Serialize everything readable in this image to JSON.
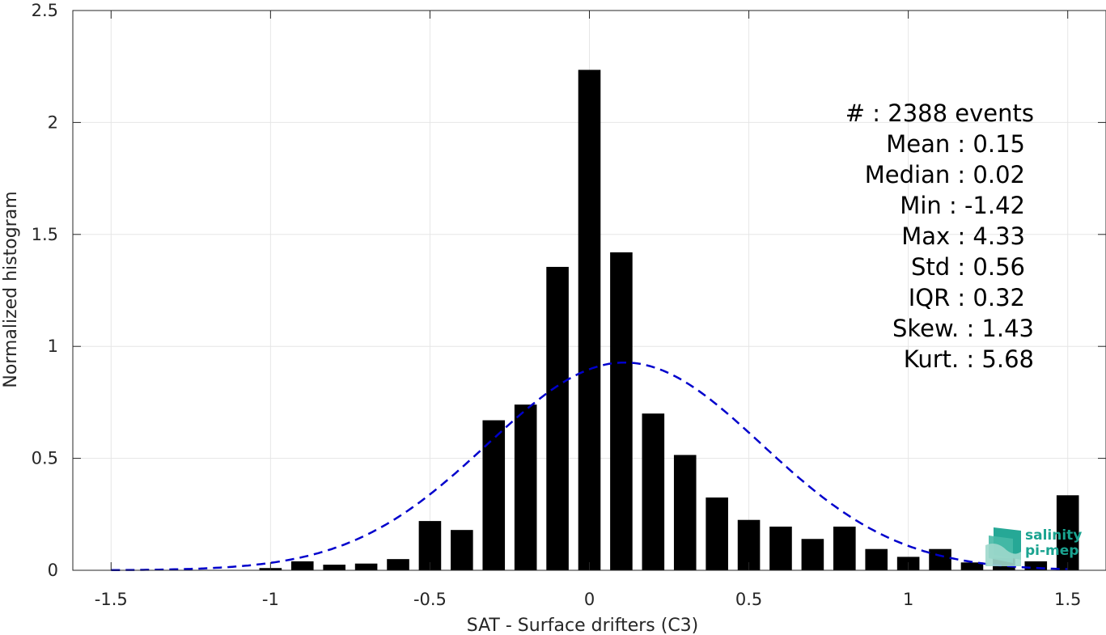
{
  "chart_data": {
    "type": "bar",
    "xlabel": "SAT - Surface drifters (C3)",
    "ylabel": "Normalized histogram",
    "xlim": [
      -1.62,
      1.62
    ],
    "ylim": [
      0,
      2.5
    ],
    "xticks": [
      -1.5,
      -1,
      -0.5,
      0,
      0.5,
      1,
      1.5
    ],
    "xtick_labels": [
      "-1.5",
      "-1",
      "-0.5",
      "0",
      "0.5",
      "1",
      "1.5"
    ],
    "yticks": [
      0,
      0.5,
      1,
      1.5,
      2,
      2.5
    ],
    "ytick_labels": [
      "0",
      "0.5",
      "1",
      "1.5",
      "2",
      "2.5"
    ],
    "grid": true,
    "bar_width": 0.07,
    "bar_color": "#000000",
    "bins": [
      -1.5,
      -1.4,
      -1.3,
      -1.2,
      -1.1,
      -1.0,
      -0.9,
      -0.8,
      -0.7,
      -0.6,
      -0.5,
      -0.4,
      -0.3,
      -0.2,
      -0.1,
      0.0,
      0.1,
      0.2,
      0.3,
      0.4,
      0.5,
      0.6,
      0.7,
      0.8,
      0.9,
      1.0,
      1.1,
      1.2,
      1.3,
      1.4,
      1.5
    ],
    "values": [
      0,
      0,
      0,
      0,
      0,
      0.01,
      0.04,
      0.025,
      0.03,
      0.05,
      0.22,
      0.18,
      0.67,
      0.74,
      1.355,
      2.235,
      1.42,
      0.7,
      0.515,
      0.325,
      0.225,
      0.195,
      0.14,
      0.195,
      0.095,
      0.06,
      0.095,
      0.035,
      0.055,
      0.04,
      0.335
    ],
    "fit_curve": {
      "type": "gaussian",
      "mean": 0.11,
      "std": 0.43,
      "color": "#0000cc",
      "style": "dashed"
    },
    "annotations": [
      "#  : 2388 events",
      "Mean : 0.15",
      "Median : 0.02",
      "Min : -1.42",
      "Max : 4.33",
      "Std : 0.56",
      "IQR : 0.32",
      "Skew. : 1.43",
      "Kurt. : 5.68"
    ]
  },
  "logo": {
    "line1": "salinity",
    "line2": "pi-mep",
    "color": "#1aa390"
  }
}
